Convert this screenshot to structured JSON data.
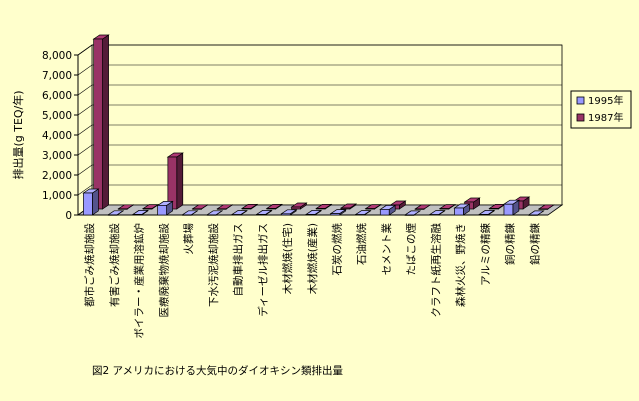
{
  "chart_data": {
    "type": "bar",
    "title": "",
    "ylabel": "排出量(g TEQ/年)",
    "caption": "図2  アメリカにおける大気中のダイオキシン類排出量",
    "ylim": [
      0,
      8000
    ],
    "yticks": [
      0,
      1000,
      2000,
      3000,
      4000,
      5000,
      6000,
      7000,
      8000
    ],
    "ytick_labels": [
      "0",
      "1,000",
      "2,000",
      "3,000",
      "4,000",
      "5,000",
      "6,000",
      "7,000",
      "8,000"
    ],
    "legend_position": "right",
    "categories": [
      "都市ごみ焼却施設",
      "有害ごみ焼却施設",
      "ボイラー・産業用溶鉱炉",
      "医療廃棄物焼却施設",
      "火葬場",
      "下水汚泥焼却施設",
      "自動車排出ガス",
      "ディーゼル排出ガス",
      "木材燃焼(住宅)",
      "木材燃焼(産業)",
      "石炭の燃焼",
      "石油燃焼",
      "セメント業",
      "たばこの煙",
      "クラフト紙再生溶融",
      "森林火災、野焼き",
      "アルミの精錬",
      "銅の精錬",
      "鉛の精錬"
    ],
    "series": [
      {
        "name": "1995年",
        "color": "#9999ff",
        "values": [
          1100,
          10,
          30,
          480,
          10,
          10,
          20,
          30,
          60,
          30,
          70,
          20,
          280,
          5,
          20,
          350,
          30,
          540,
          5
        ]
      },
      {
        "name": "1987年",
        "color": "#993366",
        "values": [
          8500,
          10,
          20,
          2600,
          10,
          10,
          30,
          30,
          100,
          30,
          50,
          20,
          200,
          5,
          20,
          350,
          30,
          400,
          5
        ]
      }
    ]
  }
}
